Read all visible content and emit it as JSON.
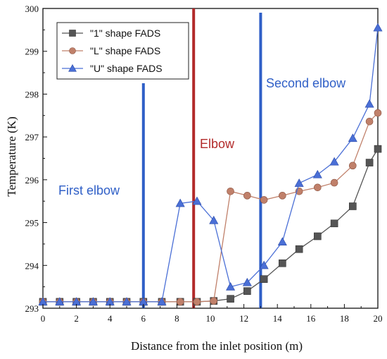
{
  "chart_data": {
    "type": "line",
    "title": "",
    "xlabel": "Distance from the inlet position (m)",
    "ylabel": "Temperature (K)",
    "xlim": [
      0,
      20
    ],
    "ylim": [
      293,
      300
    ],
    "xticks": [
      "0",
      "2",
      "4",
      "6",
      "8",
      "10",
      "12",
      "14",
      "16",
      "18",
      "20"
    ],
    "yticks": [
      "293",
      "294",
      "295",
      "296",
      "297",
      "298",
      "299",
      "300"
    ],
    "grid": false,
    "legend_position": "top-left",
    "series": [
      {
        "name": "\"1\" shape FADS",
        "color": "#555555",
        "marker": "square",
        "x": [
          0,
          1,
          2,
          3,
          4,
          5,
          6,
          7.1,
          8.2,
          9.2,
          10.2,
          11.2,
          12.2,
          13.2,
          14.3,
          15.3,
          16.4,
          17.4,
          18.5,
          19.5,
          20
        ],
        "y": [
          293.15,
          293.15,
          293.15,
          293.15,
          293.15,
          293.15,
          293.15,
          293.15,
          293.15,
          293.15,
          293.17,
          293.22,
          293.4,
          293.68,
          294.05,
          294.38,
          294.68,
          294.98,
          295.38,
          296.4,
          296.72
        ]
      },
      {
        "name": "\"L\" shape FADS",
        "color": "#c0806a",
        "marker": "circle",
        "x": [
          0,
          1,
          2,
          3,
          4,
          5,
          6,
          7.1,
          8.2,
          9.2,
          10.2,
          11.2,
          12.2,
          13.2,
          14.3,
          15.3,
          16.4,
          17.4,
          18.5,
          19.5,
          20
        ],
        "y": [
          293.15,
          293.15,
          293.15,
          293.15,
          293.15,
          293.15,
          293.15,
          293.15,
          293.15,
          293.15,
          293.17,
          295.73,
          295.63,
          295.53,
          295.63,
          295.73,
          295.82,
          295.93,
          296.33,
          297.36,
          297.56
        ]
      },
      {
        "name": "\"U\" shape FADS",
        "color": "#4a6fd6",
        "marker": "triangle",
        "x": [
          0,
          1,
          2,
          3,
          4,
          5,
          6,
          7.1,
          8.2,
          9.2,
          10.2,
          11.2,
          12.2,
          13.2,
          14.3,
          15.3,
          16.4,
          17.4,
          18.5,
          19.5,
          20
        ],
        "y": [
          293.15,
          293.15,
          293.15,
          293.15,
          293.15,
          293.15,
          293.15,
          293.15,
          295.45,
          295.5,
          295.05,
          293.5,
          293.6,
          294.0,
          294.55,
          295.92,
          296.12,
          296.42,
          296.97,
          297.77,
          299.55
        ]
      }
    ],
    "reference_lines": [
      {
        "x": 6,
        "color": "#2f5fc7",
        "label": "First elbow",
        "label_color": "#2f5fc7"
      },
      {
        "x": 9,
        "color": "#b22a2a",
        "label": "Elbow",
        "label_color": "#b22a2a"
      },
      {
        "x": 13,
        "color": "#2f5fc7",
        "label": "Second elbow",
        "label_color": "#2f5fc7"
      }
    ]
  }
}
